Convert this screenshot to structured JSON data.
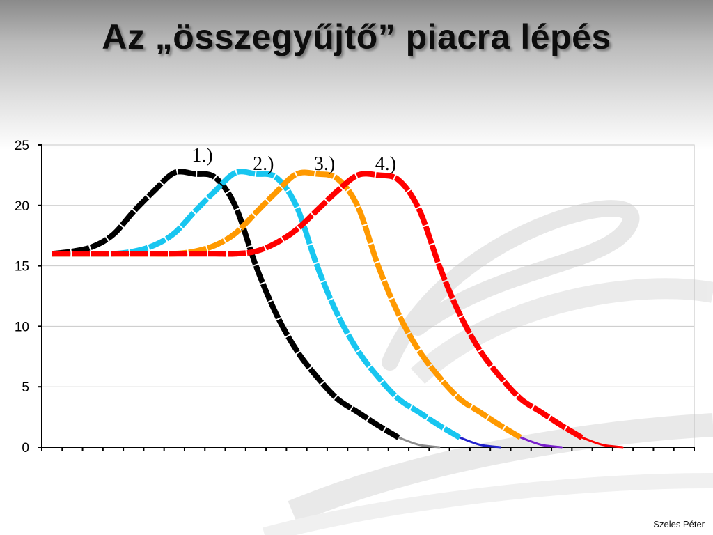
{
  "slide": {
    "title": "Az „összegyűjtő” piacra lépés",
    "footer": "Szeles Péter"
  },
  "chart_data": {
    "type": "line",
    "title": "",
    "xlabel": "",
    "ylabel": "",
    "ylim": [
      0,
      25
    ],
    "yticks": [
      "0",
      "5",
      "10",
      "15",
      "20",
      "25"
    ],
    "grid": true,
    "x": [
      0,
      1,
      2,
      3,
      4,
      5,
      6,
      7,
      8,
      9,
      10,
      11,
      12,
      13,
      14,
      15,
      16,
      17,
      18,
      19,
      20,
      21,
      22,
      23,
      24,
      25,
      26,
      27,
      28,
      29,
      30,
      31
    ],
    "series": [
      {
        "name": "1.)",
        "color": "#000000",
        "tail_color": "#8c8c8c",
        "values": [
          16,
          16.2,
          16.6,
          17.6,
          19.5,
          21.2,
          22.7,
          22.6,
          22.3,
          19.9,
          15,
          11,
          8,
          5.8,
          4,
          2.9,
          1.8,
          0.8,
          0.2,
          0,
          0,
          0,
          0,
          0,
          0,
          0,
          0,
          0,
          0,
          0,
          0,
          0
        ]
      },
      {
        "name": "2.)",
        "color": "#18c6f0",
        "tail_color": "#2222cc",
        "values": [
          16,
          16,
          16,
          16,
          16.2,
          16.7,
          17.7,
          19.5,
          21.2,
          22.7,
          22.6,
          22.3,
          19.9,
          15,
          11,
          8,
          5.8,
          4,
          2.9,
          1.8,
          0.8,
          0.2,
          0,
          0,
          0,
          0,
          0,
          0,
          0,
          0,
          0,
          0
        ]
      },
      {
        "name": "3.)",
        "color": "#ff9900",
        "tail_color": "#7a22cc",
        "values": [
          16,
          16,
          16,
          16,
          16,
          16,
          16,
          16.2,
          16.7,
          17.7,
          19.4,
          21.1,
          22.6,
          22.6,
          22.2,
          19.9,
          15,
          11,
          8,
          5.8,
          4,
          2.9,
          1.8,
          0.8,
          0.2,
          0,
          0,
          0,
          0,
          0,
          0,
          0
        ]
      },
      {
        "name": "4.)",
        "color": "#ff0000",
        "tail_color": "#ff0000",
        "values": [
          16,
          16,
          16,
          16,
          16,
          16,
          16,
          16,
          16,
          16,
          16.2,
          16.9,
          18,
          19.6,
          21.2,
          22.5,
          22.5,
          22.1,
          19.7,
          15,
          11,
          8,
          5.8,
          4,
          2.9,
          1.8,
          0.8,
          0.2,
          0,
          0,
          0,
          0
        ]
      }
    ]
  }
}
